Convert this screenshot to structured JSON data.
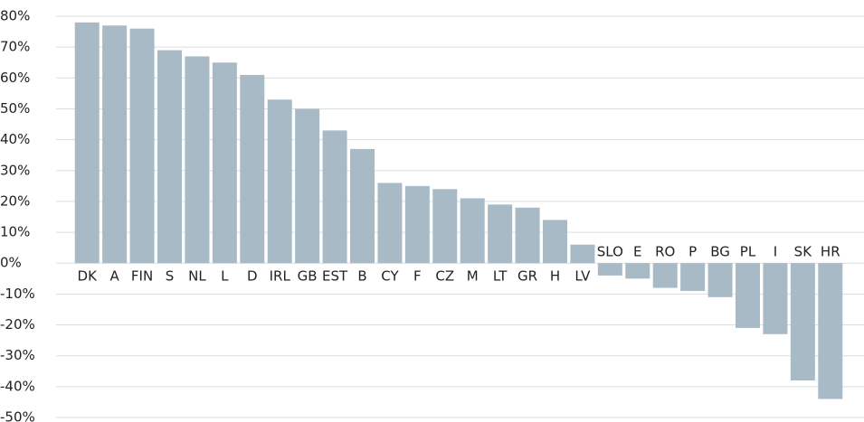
{
  "chart_data": {
    "type": "bar",
    "categories": [
      "DK",
      "A",
      "FIN",
      "S",
      "NL",
      "L",
      "D",
      "IRL",
      "GB",
      "EST",
      "B",
      "CY",
      "F",
      "CZ",
      "M",
      "LT",
      "GR",
      "H",
      "LV",
      "SLO",
      "E",
      "RO",
      "P",
      "BG",
      "PL",
      "I",
      "SK",
      "HR"
    ],
    "values": [
      78,
      77,
      76,
      69,
      67,
      65,
      61,
      53,
      50,
      43,
      37,
      26,
      25,
      24,
      21,
      19,
      18,
      14,
      6,
      -4,
      -5,
      -8,
      -9,
      -11,
      -21,
      -23,
      -38,
      -44
    ],
    "color": "#a7bac6",
    "ylim": [
      -50,
      80
    ],
    "yticks": [
      {
        "value": -50,
        "label": "-50%"
      },
      {
        "value": -40,
        "label": "-40%"
      },
      {
        "value": -30,
        "label": "-30%"
      },
      {
        "value": -20,
        "label": "-20%"
      },
      {
        "value": -10,
        "label": "-10%"
      },
      {
        "value": 0,
        "label": "0%"
      },
      {
        "value": 10,
        "label": "10%"
      },
      {
        "value": 20,
        "label": "20%"
      },
      {
        "value": 30,
        "label": "30%"
      },
      {
        "value": 40,
        "label": "40%"
      },
      {
        "value": 50,
        "label": "50%"
      },
      {
        "value": 60,
        "label": "60%"
      },
      {
        "value": 70,
        "label": "70%"
      },
      {
        "value": 80,
        "label": "80%"
      }
    ],
    "grid": true
  }
}
